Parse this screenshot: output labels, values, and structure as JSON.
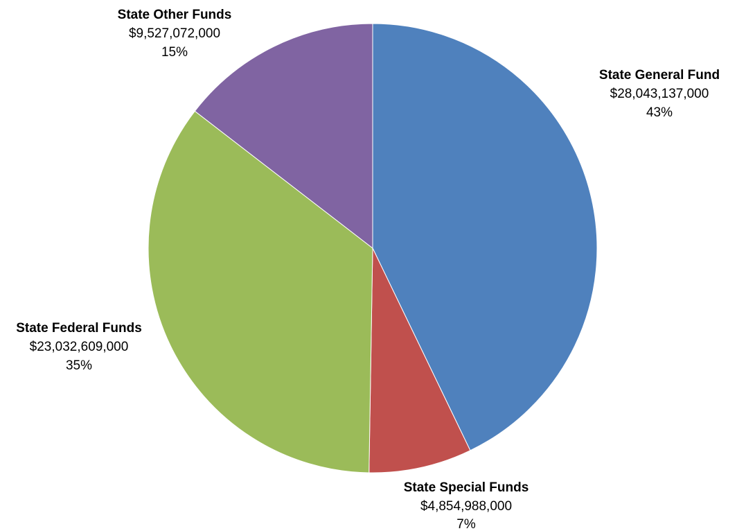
{
  "chart_data": {
    "type": "pie",
    "title": "",
    "start": "top",
    "direction": "clockwise",
    "legend": "none",
    "slices": [
      {
        "name": "State General Fund",
        "amount": "$28,043,137,000",
        "percent_label": "43%",
        "value": 28043137000,
        "color": "#4F81BD"
      },
      {
        "name": "State Special Funds",
        "amount": "$4,854,988,000",
        "percent_label": "7%",
        "value": 4854988000,
        "color": "#C0504D"
      },
      {
        "name": "State Federal Funds",
        "amount": "$23,032,609,000",
        "percent_label": "35%",
        "value": 23032609000,
        "color": "#9BBB59"
      },
      {
        "name": "State Other Funds",
        "amount": "$9,527,072,000",
        "percent_label": "15%",
        "value": 9527072000,
        "color": "#8064A2"
      }
    ]
  }
}
